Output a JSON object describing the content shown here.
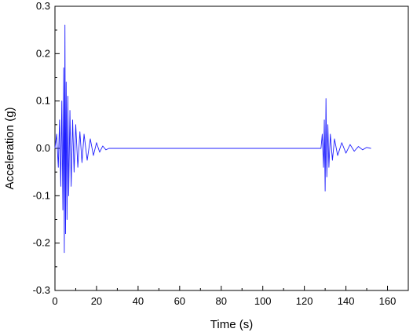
{
  "chart_data": {
    "type": "line",
    "title": "",
    "xlabel": "Time (s)",
    "ylabel": "Acceleration (g)",
    "xlim": [
      0,
      170
    ],
    "ylim": [
      -0.3,
      0.3
    ],
    "x_ticks": [
      0,
      20,
      40,
      60,
      80,
      100,
      120,
      140,
      160
    ],
    "x_tick_labels": [
      "0",
      "20",
      "40",
      "60",
      "80",
      "100",
      "120",
      "140",
      "160"
    ],
    "y_ticks": [
      0.3,
      0.2,
      0.1,
      0.0,
      -0.1,
      -0.2,
      -0.3
    ],
    "y_tick_labels": [
      "0.3",
      "0.2",
      "0.1",
      "0.0",
      "-0.1",
      "-0.2",
      "-0.3"
    ],
    "grid": false,
    "legend": "none",
    "series": [
      {
        "color": "#1f1fff",
        "x": [
          0.0,
          0.8,
          1.6,
          2.2,
          2.8,
          3.3,
          3.8,
          4.2,
          4.5,
          4.8,
          5.1,
          5.4,
          5.8,
          6.2,
          6.6,
          7.2,
          7.8,
          8.5,
          9.2,
          10.0,
          11.0,
          12.0,
          13.0,
          14.0,
          15.5,
          17.0,
          18.5,
          20.0,
          21.5,
          23.0,
          24.5,
          26.0,
          128.0,
          128.6,
          129.2,
          129.6,
          130.0,
          130.4,
          130.8,
          131.3,
          131.8,
          132.5,
          133.5,
          134.5,
          136.0,
          138.0,
          140.0,
          142.0,
          144.0,
          146.0,
          148.0,
          150.0,
          152.0
        ],
        "y": [
          0.0,
          0.03,
          -0.04,
          0.06,
          -0.08,
          0.1,
          -0.13,
          0.17,
          -0.22,
          0.26,
          -0.18,
          0.14,
          -0.15,
          0.11,
          -0.1,
          0.08,
          -0.08,
          0.06,
          -0.05,
          0.05,
          -0.04,
          0.035,
          -0.03,
          0.03,
          -0.025,
          0.02,
          -0.015,
          0.012,
          -0.008,
          0.005,
          -0.003,
          0.0,
          0.0,
          0.03,
          -0.04,
          0.06,
          -0.09,
          0.105,
          -0.06,
          0.05,
          -0.04,
          0.03,
          -0.025,
          0.02,
          -0.015,
          0.012,
          -0.01,
          0.008,
          -0.006,
          0.004,
          -0.003,
          0.002,
          0.0
        ]
      }
    ]
  }
}
